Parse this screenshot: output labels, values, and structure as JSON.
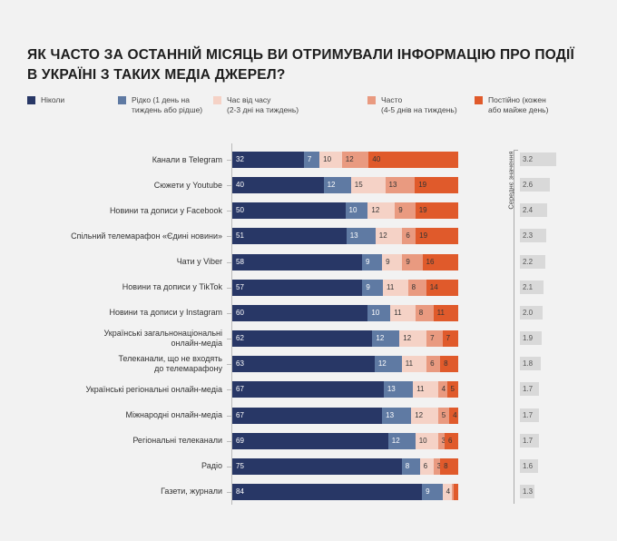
{
  "title": "ЯК ЧАСТО ЗА ОСТАННІЙ МІСЯЦЬ ВИ ОТРИМУВАЛИ ІНФОРМАЦІЮ ПРО ПОДІЇ\nВ УКРАЇНІ З ТАКИХ МЕДІА ДЖЕРЕЛ?",
  "chart_data": {
    "type": "bar",
    "orientation": "horizontal",
    "stacked": true,
    "unit": "%",
    "categories": [
      "Канали в Telegram",
      "Сюжети у Youtube",
      "Новини та дописи у Facebook",
      "Спільний телемарафон «Єдині новини»",
      "Чати у Viber",
      "Новини та дописи у TikTok",
      "Новини та дописи у Instagram",
      "Українські загальнонаціональні\nонлайн-медіа",
      "Телеканали, що не входять\nдо телемарафону",
      "Українські регіональні онлайн-медіа",
      "Міжнародні онлайн-медіа",
      "Регіональні телеканали",
      "Радіо",
      "Газети, журнали"
    ],
    "series": [
      {
        "name": "Ніколи",
        "legend": "Ніколи",
        "color": "#283766",
        "text_color": "#ffffff",
        "values": [
          32,
          40,
          50,
          51,
          58,
          57,
          60,
          62,
          63,
          67,
          67,
          69,
          75,
          84
        ]
      },
      {
        "name": "Рідко",
        "legend": "Рідко (1 день на\nтиждень або рідше)",
        "color": "#5f7aa3",
        "text_color": "#ffffff",
        "values": [
          7,
          12,
          10,
          13,
          9,
          9,
          10,
          12,
          12,
          13,
          13,
          12,
          8,
          9
        ]
      },
      {
        "name": "Час від часу",
        "legend": "Час від часу\n(2-3 дні на тиждень)",
        "color": "#f5d2c6",
        "text_color": "#333333",
        "values": [
          10,
          15,
          12,
          12,
          9,
          11,
          11,
          12,
          11,
          11,
          12,
          10,
          6,
          4
        ]
      },
      {
        "name": "Часто",
        "legend": "Часто\n(4-5 днів на тиждень)",
        "color": "#e99a80",
        "text_color": "#333333",
        "values": [
          12,
          13,
          9,
          6,
          9,
          8,
          8,
          7,
          6,
          4,
          5,
          3,
          3,
          1
        ]
      },
      {
        "name": "Постійно",
        "legend": "Постійно (кожен\nабо майже день)",
        "color": "#e05a2b",
        "text_color": "#333333",
        "values": [
          40,
          19,
          19,
          19,
          16,
          14,
          11,
          7,
          8,
          5,
          4,
          6,
          8,
          2
        ]
      }
    ],
    "mean": {
      "label": "Середнє значення",
      "values": [
        3.2,
        2.6,
        2.4,
        2.3,
        2.2,
        2.1,
        2.0,
        1.9,
        1.8,
        1.7,
        1.7,
        1.7,
        1.6,
        1.3
      ]
    }
  }
}
